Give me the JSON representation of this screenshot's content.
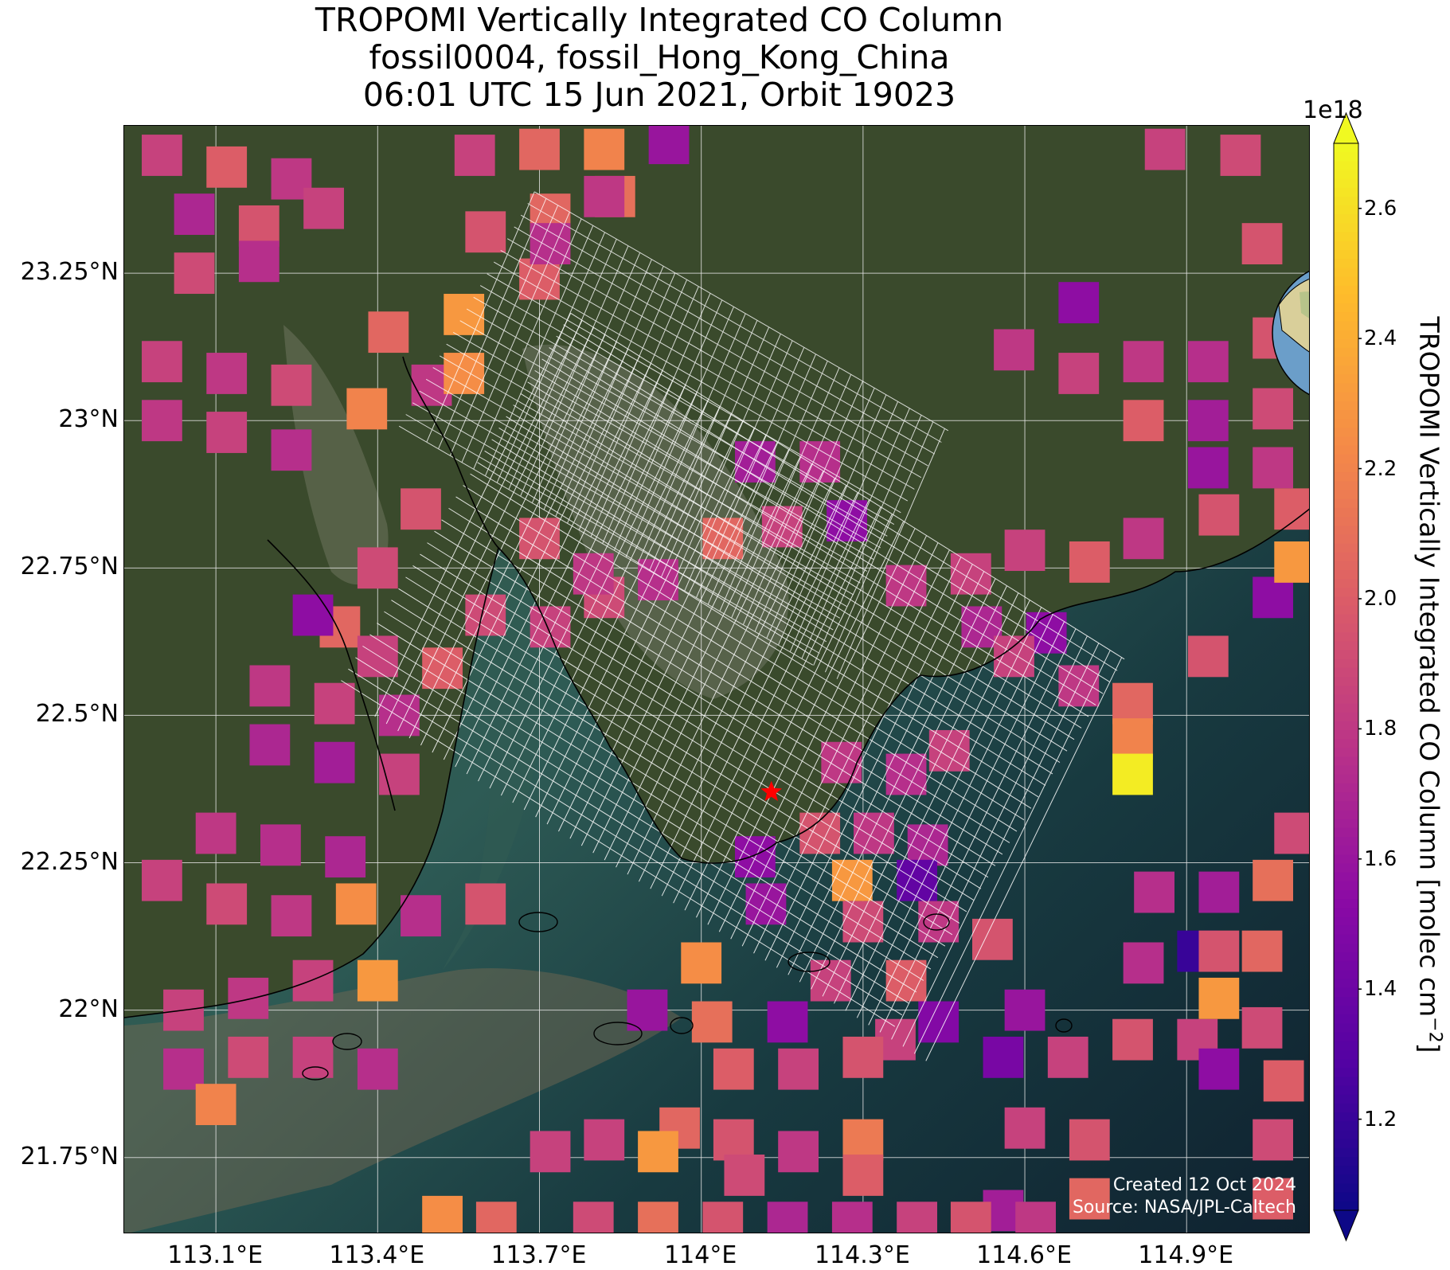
{
  "title": {
    "line1": "TROPOMI Vertically Integrated CO Column",
    "line2": "fossil0004, fossil_Hong_Kong_China",
    "line3": "06:01 UTC 15 Jun 2021, Orbit 19023"
  },
  "map": {
    "extent": {
      "lon_min": 112.93,
      "lon_max": 115.13,
      "lat_min": 21.62,
      "lat_max": 23.5
    },
    "lat_ticks": [
      {
        "value": 23.25,
        "label": "23.25°N"
      },
      {
        "value": 23.0,
        "label": "23°N"
      },
      {
        "value": 22.75,
        "label": "22.75°N"
      },
      {
        "value": 22.5,
        "label": "22.5°N"
      },
      {
        "value": 22.25,
        "label": "22.25°N"
      },
      {
        "value": 22.0,
        "label": "22°N"
      },
      {
        "value": 21.75,
        "label": "21.75°N"
      }
    ],
    "lon_ticks": [
      {
        "value": 113.1,
        "label": "113.1°E"
      },
      {
        "value": 113.4,
        "label": "113.4°E"
      },
      {
        "value": 113.7,
        "label": "113.7°E"
      },
      {
        "value": 114.0,
        "label": "114°E"
      },
      {
        "value": 114.3,
        "label": "114.3°E"
      },
      {
        "value": 114.6,
        "label": "114.6°E"
      },
      {
        "value": 114.9,
        "label": "114.9°E"
      }
    ],
    "gridlines": true,
    "target_marker": {
      "lon": 114.13,
      "lat": 22.37,
      "symbol": "star",
      "color": "#ff0000"
    },
    "colors": {
      "land": "#3a4a2c",
      "sea": "#1a3a3c",
      "deep_sea": "#0f2533",
      "coastline": "#000000",
      "grid": "#e8e8e8",
      "target_grid": "#ffffff"
    },
    "credit": {
      "line1": "Created 12 Oct 2024",
      "line2": "Source: NASA/JPL-Caltech"
    }
  },
  "chart_data": {
    "type": "heatmap",
    "description_units": "CO column, molec cm^-2 (x1e18)",
    "pixels": [
      {
        "lon": 113.0,
        "lat": 23.45,
        "v": 1.85
      },
      {
        "lon": 113.12,
        "lat": 23.43,
        "v": 2.0
      },
      {
        "lon": 113.24,
        "lat": 23.41,
        "v": 1.8
      },
      {
        "lon": 113.06,
        "lat": 23.35,
        "v": 1.7
      },
      {
        "lon": 113.18,
        "lat": 23.33,
        "v": 1.95
      },
      {
        "lon": 113.3,
        "lat": 23.36,
        "v": 1.85
      },
      {
        "lon": 113.06,
        "lat": 23.25,
        "v": 1.9
      },
      {
        "lon": 113.18,
        "lat": 23.27,
        "v": 1.75
      },
      {
        "lon": 113.0,
        "lat": 23.1,
        "v": 1.85
      },
      {
        "lon": 113.12,
        "lat": 23.08,
        "v": 1.8
      },
      {
        "lon": 113.24,
        "lat": 23.06,
        "v": 1.9
      },
      {
        "lon": 113.0,
        "lat": 23.0,
        "v": 1.8
      },
      {
        "lon": 113.12,
        "lat": 22.98,
        "v": 1.85
      },
      {
        "lon": 113.24,
        "lat": 22.95,
        "v": 1.75
      },
      {
        "lon": 113.38,
        "lat": 23.02,
        "v": 2.2
      },
      {
        "lon": 113.5,
        "lat": 23.06,
        "v": 1.8
      },
      {
        "lon": 113.42,
        "lat": 23.15,
        "v": 2.05
      },
      {
        "lon": 113.56,
        "lat": 23.18,
        "v": 2.3
      },
      {
        "lon": 113.56,
        "lat": 23.08,
        "v": 2.25
      },
      {
        "lon": 113.7,
        "lat": 23.24,
        "v": 2.0
      },
      {
        "lon": 113.6,
        "lat": 23.32,
        "v": 1.95
      },
      {
        "lon": 113.72,
        "lat": 23.35,
        "v": 2.05
      },
      {
        "lon": 113.84,
        "lat": 23.38,
        "v": 2.1
      },
      {
        "lon": 113.58,
        "lat": 23.45,
        "v": 1.85
      },
      {
        "lon": 113.7,
        "lat": 23.46,
        "v": 2.05
      },
      {
        "lon": 113.82,
        "lat": 23.46,
        "v": 2.2
      },
      {
        "lon": 113.82,
        "lat": 23.38,
        "v": 1.8
      },
      {
        "lon": 113.94,
        "lat": 23.47,
        "v": 1.6
      },
      {
        "lon": 113.72,
        "lat": 23.3,
        "v": 1.75
      },
      {
        "lon": 113.48,
        "lat": 22.85,
        "v": 1.95
      },
      {
        "lon": 113.4,
        "lat": 22.75,
        "v": 1.9
      },
      {
        "lon": 113.33,
        "lat": 22.65,
        "v": 2.05
      },
      {
        "lon": 113.28,
        "lat": 22.67,
        "v": 1.55
      },
      {
        "lon": 113.4,
        "lat": 22.6,
        "v": 1.85
      },
      {
        "lon": 113.52,
        "lat": 22.58,
        "v": 2.0
      },
      {
        "lon": 113.6,
        "lat": 22.67,
        "v": 1.9
      },
      {
        "lon": 113.72,
        "lat": 22.65,
        "v": 1.85
      },
      {
        "lon": 113.82,
        "lat": 22.7,
        "v": 1.9
      },
      {
        "lon": 113.7,
        "lat": 22.8,
        "v": 1.95
      },
      {
        "lon": 113.8,
        "lat": 22.74,
        "v": 1.8
      },
      {
        "lon": 113.2,
        "lat": 22.55,
        "v": 1.8
      },
      {
        "lon": 113.32,
        "lat": 22.52,
        "v": 1.85
      },
      {
        "lon": 113.44,
        "lat": 22.5,
        "v": 1.75
      },
      {
        "lon": 113.2,
        "lat": 22.45,
        "v": 1.7
      },
      {
        "lon": 113.32,
        "lat": 22.42,
        "v": 1.65
      },
      {
        "lon": 113.44,
        "lat": 22.4,
        "v": 1.85
      },
      {
        "lon": 113.1,
        "lat": 22.3,
        "v": 1.8
      },
      {
        "lon": 113.22,
        "lat": 22.28,
        "v": 1.75
      },
      {
        "lon": 113.34,
        "lat": 22.26,
        "v": 1.7
      },
      {
        "lon": 113.0,
        "lat": 22.22,
        "v": 1.85
      },
      {
        "lon": 113.12,
        "lat": 22.18,
        "v": 1.9
      },
      {
        "lon": 113.24,
        "lat": 22.16,
        "v": 1.8
      },
      {
        "lon": 113.36,
        "lat": 22.18,
        "v": 2.25
      },
      {
        "lon": 113.48,
        "lat": 22.16,
        "v": 1.75
      },
      {
        "lon": 113.6,
        "lat": 22.18,
        "v": 1.95
      },
      {
        "lon": 113.4,
        "lat": 22.05,
        "v": 2.3
      },
      {
        "lon": 113.28,
        "lat": 22.05,
        "v": 1.85
      },
      {
        "lon": 113.16,
        "lat": 22.02,
        "v": 1.8
      },
      {
        "lon": 113.04,
        "lat": 22.0,
        "v": 1.85
      },
      {
        "lon": 113.04,
        "lat": 21.9,
        "v": 1.75
      },
      {
        "lon": 113.16,
        "lat": 21.92,
        "v": 1.9
      },
      {
        "lon": 113.28,
        "lat": 21.92,
        "v": 1.85
      },
      {
        "lon": 113.4,
        "lat": 21.9,
        "v": 1.75
      },
      {
        "lon": 113.1,
        "lat": 21.84,
        "v": 2.2
      },
      {
        "lon": 114.1,
        "lat": 22.93,
        "v": 1.65
      },
      {
        "lon": 114.22,
        "lat": 22.93,
        "v": 1.75
      },
      {
        "lon": 114.15,
        "lat": 22.82,
        "v": 1.85
      },
      {
        "lon": 114.27,
        "lat": 22.83,
        "v": 1.55
      },
      {
        "lon": 114.04,
        "lat": 22.8,
        "v": 2.05
      },
      {
        "lon": 113.92,
        "lat": 22.73,
        "v": 1.75
      },
      {
        "lon": 114.38,
        "lat": 22.72,
        "v": 1.8
      },
      {
        "lon": 114.5,
        "lat": 22.74,
        "v": 1.85
      },
      {
        "lon": 114.6,
        "lat": 22.78,
        "v": 1.85
      },
      {
        "lon": 114.72,
        "lat": 22.76,
        "v": 2.0
      },
      {
        "lon": 114.82,
        "lat": 22.8,
        "v": 1.8
      },
      {
        "lon": 114.96,
        "lat": 22.84,
        "v": 1.95
      },
      {
        "lon": 114.52,
        "lat": 22.65,
        "v": 1.7
      },
      {
        "lon": 114.64,
        "lat": 22.64,
        "v": 1.55
      },
      {
        "lon": 114.94,
        "lat": 22.6,
        "v": 1.95
      },
      {
        "lon": 115.06,
        "lat": 22.7,
        "v": 1.55
      },
      {
        "lon": 115.1,
        "lat": 22.76,
        "v": 2.3
      },
      {
        "lon": 114.7,
        "lat": 23.2,
        "v": 1.55
      },
      {
        "lon": 114.58,
        "lat": 23.12,
        "v": 1.8
      },
      {
        "lon": 114.7,
        "lat": 23.08,
        "v": 1.85
      },
      {
        "lon": 114.82,
        "lat": 23.1,
        "v": 1.8
      },
      {
        "lon": 114.94,
        "lat": 23.1,
        "v": 1.75
      },
      {
        "lon": 115.06,
        "lat": 23.14,
        "v": 1.95
      },
      {
        "lon": 114.82,
        "lat": 23.0,
        "v": 2.0
      },
      {
        "lon": 114.94,
        "lat": 23.0,
        "v": 1.65
      },
      {
        "lon": 115.06,
        "lat": 23.02,
        "v": 1.9
      },
      {
        "lon": 114.94,
        "lat": 22.92,
        "v": 1.6
      },
      {
        "lon": 115.06,
        "lat": 22.92,
        "v": 1.8
      },
      {
        "lon": 115.1,
        "lat": 22.85,
        "v": 2.0
      },
      {
        "lon": 115.04,
        "lat": 23.3,
        "v": 1.95
      },
      {
        "lon": 115.0,
        "lat": 23.45,
        "v": 1.9
      },
      {
        "lon": 114.86,
        "lat": 23.46,
        "v": 1.85
      },
      {
        "lon": 114.26,
        "lat": 22.42,
        "v": 1.8
      },
      {
        "lon": 114.38,
        "lat": 22.4,
        "v": 1.75
      },
      {
        "lon": 114.46,
        "lat": 22.44,
        "v": 1.85
      },
      {
        "lon": 114.22,
        "lat": 22.3,
        "v": 1.95
      },
      {
        "lon": 114.32,
        "lat": 22.3,
        "v": 1.8
      },
      {
        "lon": 114.42,
        "lat": 22.28,
        "v": 1.7
      },
      {
        "lon": 114.1,
        "lat": 22.26,
        "v": 1.55
      },
      {
        "lon": 114.28,
        "lat": 22.22,
        "v": 2.3
      },
      {
        "lon": 114.4,
        "lat": 22.22,
        "v": 1.35
      },
      {
        "lon": 114.12,
        "lat": 22.18,
        "v": 1.6
      },
      {
        "lon": 114.3,
        "lat": 22.15,
        "v": 1.9
      },
      {
        "lon": 114.44,
        "lat": 22.15,
        "v": 1.8
      },
      {
        "lon": 114.54,
        "lat": 22.12,
        "v": 1.95
      },
      {
        "lon": 114.0,
        "lat": 22.08,
        "v": 2.25
      },
      {
        "lon": 114.24,
        "lat": 22.05,
        "v": 1.85
      },
      {
        "lon": 114.38,
        "lat": 22.05,
        "v": 2.0
      },
      {
        "lon": 114.44,
        "lat": 21.98,
        "v": 1.5
      },
      {
        "lon": 114.36,
        "lat": 21.95,
        "v": 1.85
      },
      {
        "lon": 114.02,
        "lat": 21.98,
        "v": 2.1
      },
      {
        "lon": 114.16,
        "lat": 21.98,
        "v": 1.55
      },
      {
        "lon": 113.9,
        "lat": 22.0,
        "v": 1.6
      },
      {
        "lon": 114.06,
        "lat": 21.9,
        "v": 2.0
      },
      {
        "lon": 114.18,
        "lat": 21.9,
        "v": 1.85
      },
      {
        "lon": 114.3,
        "lat": 21.92,
        "v": 1.95
      },
      {
        "lon": 114.6,
        "lat": 22.0,
        "v": 1.6
      },
      {
        "lon": 113.82,
        "lat": 21.78,
        "v": 1.85
      },
      {
        "lon": 113.96,
        "lat": 21.8,
        "v": 2.05
      },
      {
        "lon": 113.92,
        "lat": 21.76,
        "v": 2.3
      },
      {
        "lon": 114.06,
        "lat": 21.78,
        "v": 1.95
      },
      {
        "lon": 114.18,
        "lat": 21.76,
        "v": 1.8
      },
      {
        "lon": 114.3,
        "lat": 21.78,
        "v": 2.15
      },
      {
        "lon": 114.08,
        "lat": 21.72,
        "v": 1.9
      },
      {
        "lon": 114.3,
        "lat": 21.72,
        "v": 2.0
      },
      {
        "lon": 114.56,
        "lat": 21.92,
        "v": 1.45
      },
      {
        "lon": 114.68,
        "lat": 21.92,
        "v": 1.85
      },
      {
        "lon": 114.8,
        "lat": 21.95,
        "v": 1.95
      },
      {
        "lon": 114.92,
        "lat": 21.95,
        "v": 1.85
      },
      {
        "lon": 115.04,
        "lat": 21.97,
        "v": 1.9
      },
      {
        "lon": 114.96,
        "lat": 21.9,
        "v": 1.55
      },
      {
        "lon": 115.08,
        "lat": 21.88,
        "v": 2.0
      },
      {
        "lon": 114.6,
        "lat": 21.8,
        "v": 1.85
      },
      {
        "lon": 114.72,
        "lat": 21.78,
        "v": 1.95
      },
      {
        "lon": 115.06,
        "lat": 21.78,
        "v": 1.9
      },
      {
        "lon": 115.06,
        "lat": 21.68,
        "v": 2.0
      },
      {
        "lon": 114.72,
        "lat": 21.68,
        "v": 2.05
      },
      {
        "lon": 114.56,
        "lat": 21.66,
        "v": 1.65
      },
      {
        "lon": 114.62,
        "lat": 21.64,
        "v": 1.8
      },
      {
        "lon": 114.28,
        "lat": 21.64,
        "v": 1.75
      },
      {
        "lon": 114.4,
        "lat": 21.64,
        "v": 1.85
      },
      {
        "lon": 114.5,
        "lat": 21.64,
        "v": 1.95
      },
      {
        "lon": 114.82,
        "lat": 22.08,
        "v": 1.75
      },
      {
        "lon": 114.92,
        "lat": 22.1,
        "v": 1.2
      },
      {
        "lon": 115.04,
        "lat": 22.1,
        "v": 2.05
      },
      {
        "lon": 114.84,
        "lat": 22.2,
        "v": 1.75
      },
      {
        "lon": 114.96,
        "lat": 22.2,
        "v": 1.65
      },
      {
        "lon": 115.06,
        "lat": 22.22,
        "v": 2.1
      },
      {
        "lon": 114.96,
        "lat": 22.1,
        "v": 1.95
      },
      {
        "lon": 114.96,
        "lat": 22.02,
        "v": 2.3
      },
      {
        "lon": 115.1,
        "lat": 22.3,
        "v": 1.9
      },
      {
        "lon": 114.8,
        "lat": 22.52,
        "v": 2.05
      },
      {
        "lon": 114.8,
        "lat": 22.46,
        "v": 2.2
      },
      {
        "lon": 114.8,
        "lat": 22.4,
        "v": 2.65
      },
      {
        "lon": 114.58,
        "lat": 22.6,
        "v": 1.85
      },
      {
        "lon": 114.7,
        "lat": 22.55,
        "v": 1.8
      },
      {
        "lon": 113.72,
        "lat": 21.76,
        "v": 1.85
      },
      {
        "lon": 113.52,
        "lat": 21.65,
        "v": 2.25
      },
      {
        "lon": 113.62,
        "lat": 21.64,
        "v": 2.05
      },
      {
        "lon": 113.8,
        "lat": 21.64,
        "v": 1.9
      },
      {
        "lon": 113.92,
        "lat": 21.64,
        "v": 2.1
      },
      {
        "lon": 114.04,
        "lat": 21.64,
        "v": 1.95
      },
      {
        "lon": 114.16,
        "lat": 21.64,
        "v": 1.7
      }
    ],
    "colorbar": {
      "label": "TROPOMI Vertically Integrated CO Column [molec cm",
      "label_exponent": "−2",
      "label_close": "]",
      "exponent": "1e18",
      "vmin": 1.06,
      "vmax": 2.7,
      "colormap": "plasma",
      "extend": "both",
      "ticks": [
        {
          "value": 1.2,
          "label": "1.2"
        },
        {
          "value": 1.4,
          "label": "1.4"
        },
        {
          "value": 1.6,
          "label": "1.6"
        },
        {
          "value": 1.8,
          "label": "1.8"
        },
        {
          "value": 2.0,
          "label": "2.0"
        },
        {
          "value": 2.2,
          "label": "2.2"
        },
        {
          "value": 2.4,
          "label": "2.4"
        },
        {
          "value": 2.6,
          "label": "2.6"
        }
      ]
    }
  }
}
